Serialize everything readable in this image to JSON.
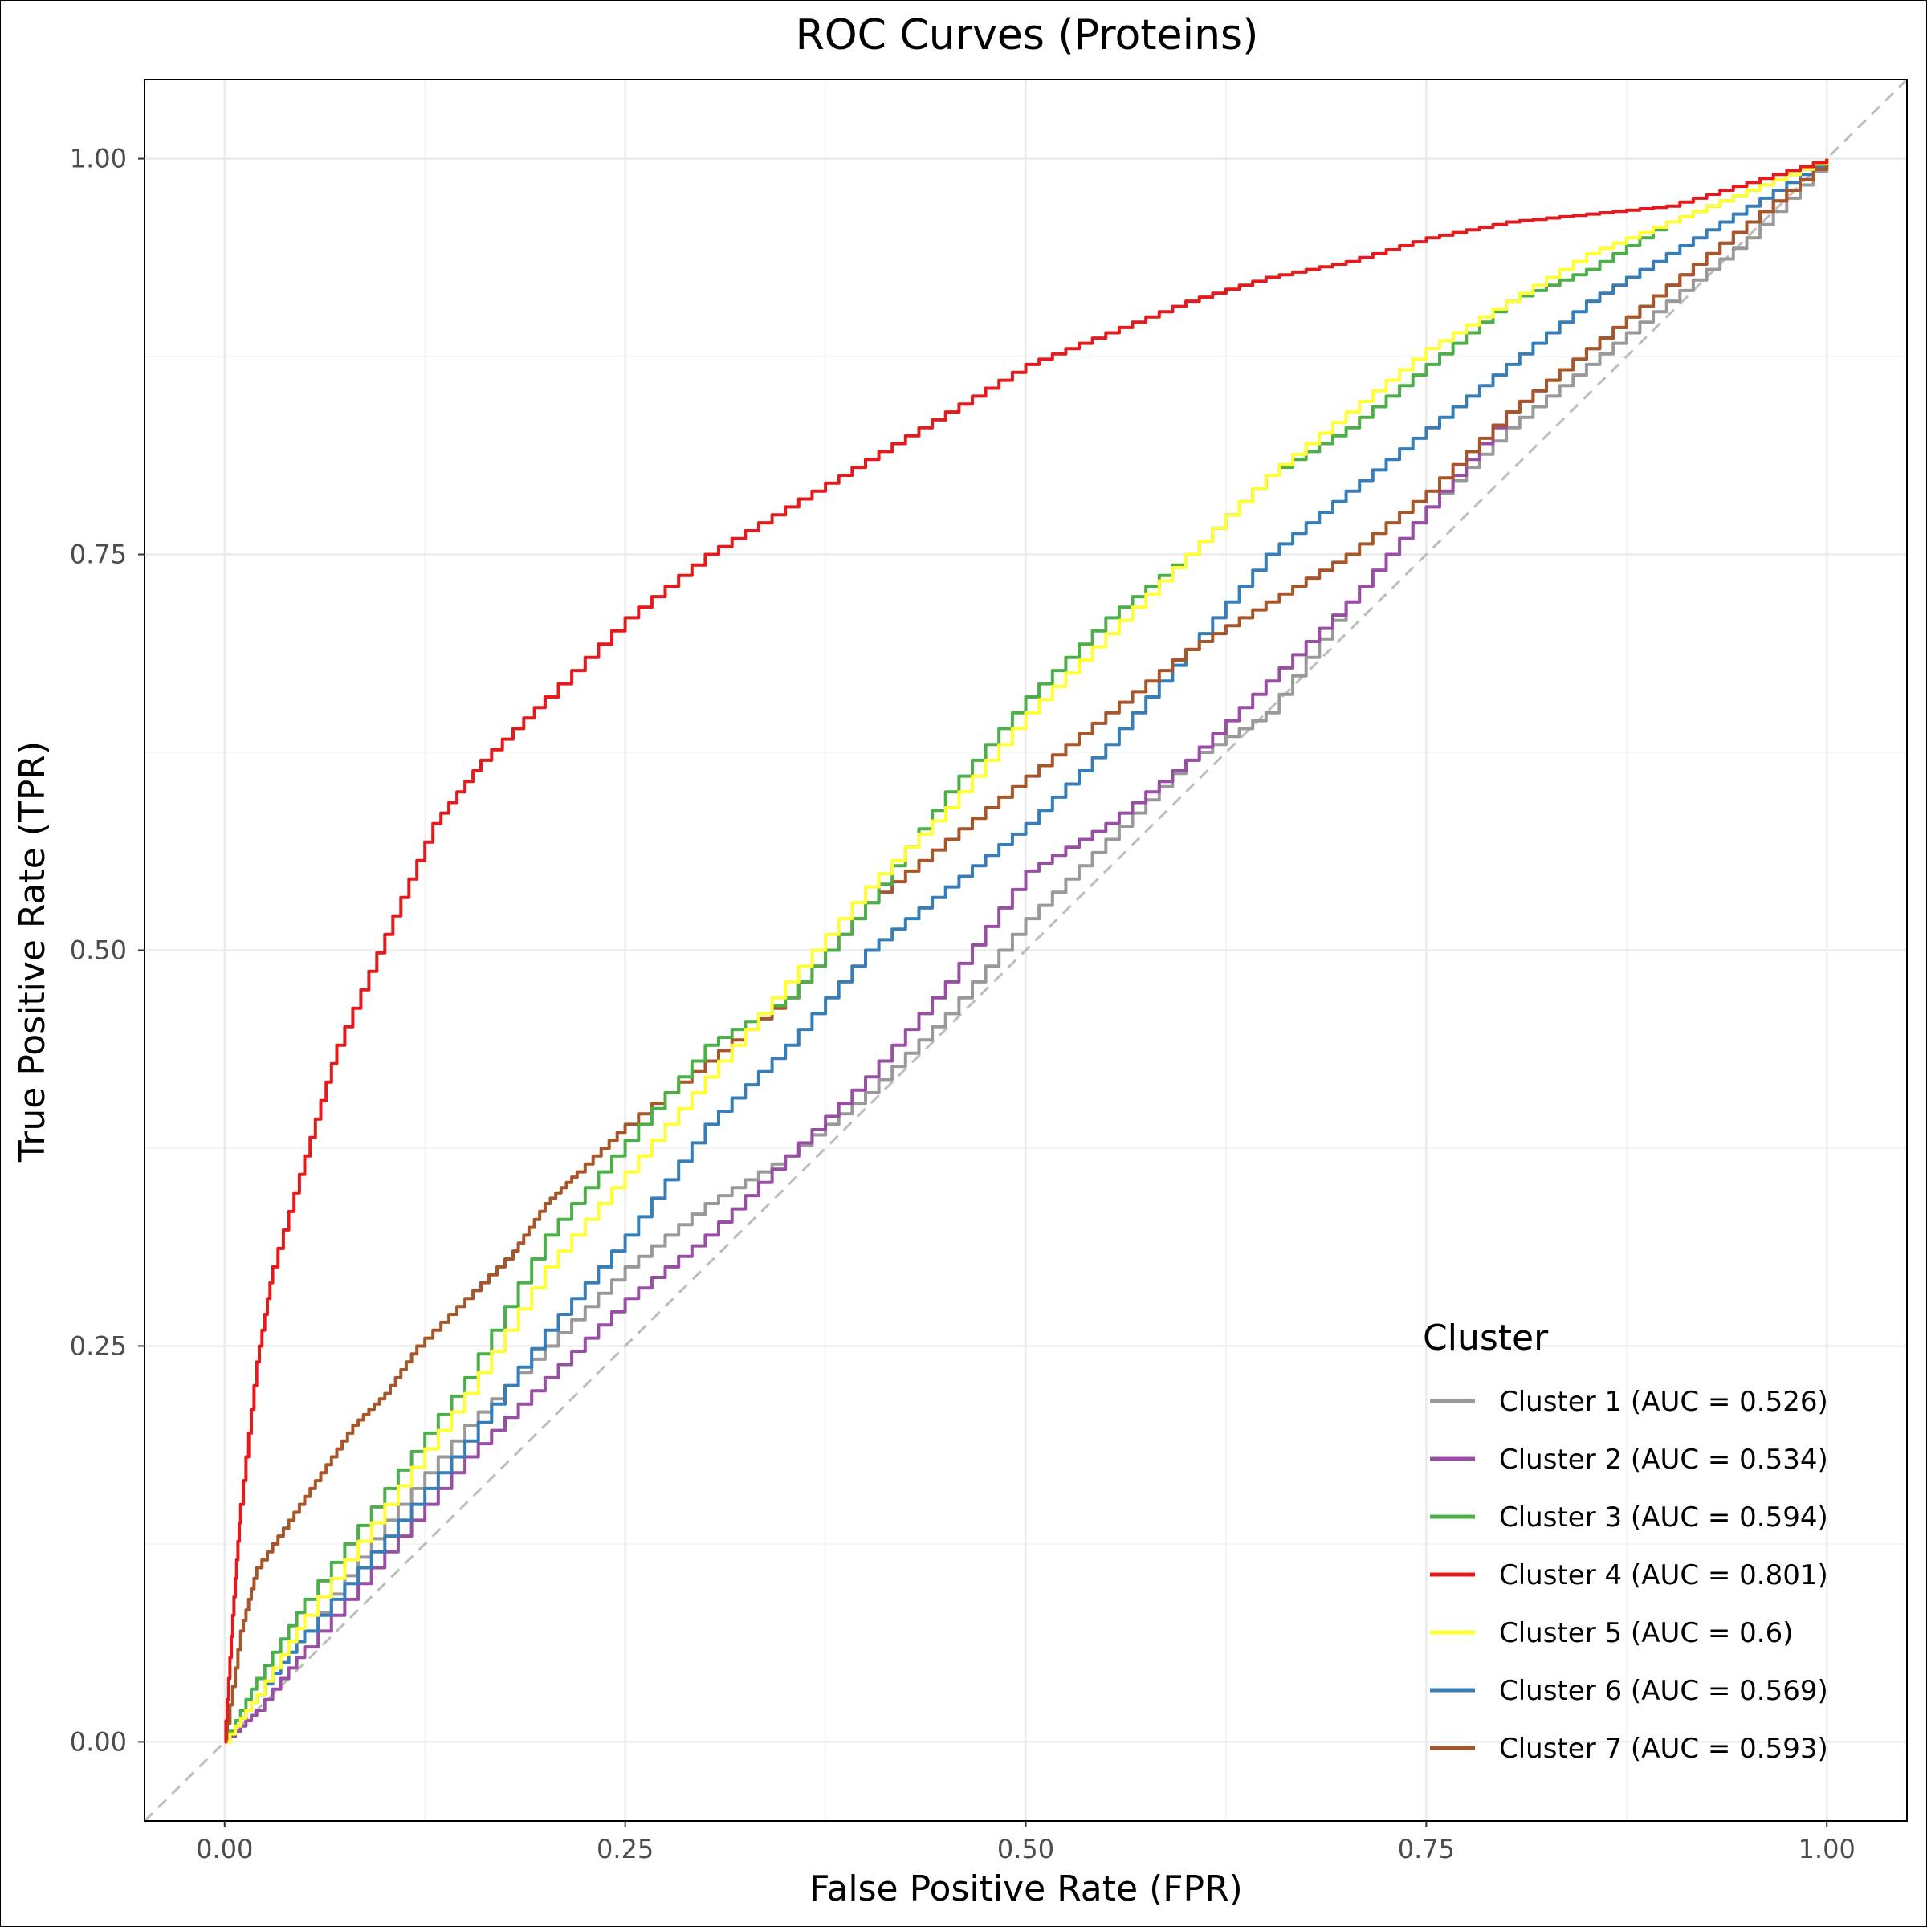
{
  "chart_data": {
    "type": "line",
    "title": "ROC Curves (Proteins)",
    "xlabel": "False Positive Rate (FPR)",
    "ylabel": "True Positive Rate (TPR)",
    "xlim": [
      -0.05,
      1.05
    ],
    "ylim": [
      -0.05,
      1.05
    ],
    "x_ticks": [
      0,
      0.25,
      0.5,
      0.75,
      1
    ],
    "y_ticks": [
      0,
      0.25,
      0.5,
      0.75,
      1
    ],
    "x_tick_labels": [
      "0.00",
      "0.25",
      "0.50",
      "0.75",
      "1.00"
    ],
    "y_tick_labels": [
      "0.00",
      "0.25",
      "0.50",
      "0.75",
      "1.00"
    ],
    "grid": true,
    "legend_title": "Cluster",
    "legend_position": "bottom-right",
    "reference_line": {
      "x": [
        -0.05,
        1.05
      ],
      "y": [
        -0.05,
        1.05
      ],
      "color": "#bdbdbd",
      "dashed": true
    },
    "series": [
      {
        "name": "Cluster 1 (AUC = 0.526)",
        "color": "#999999",
        "x": [
          0,
          0.02,
          0.05,
          0.1,
          0.15,
          0.2,
          0.25,
          0.3,
          0.35,
          0.4,
          0.45,
          0.5,
          0.55,
          0.6,
          0.65,
          0.7,
          0.75,
          0.8,
          0.85,
          0.9,
          0.95,
          1
        ],
        "y": [
          0,
          0.03,
          0.07,
          0.14,
          0.2,
          0.25,
          0.3,
          0.34,
          0.37,
          0.41,
          0.46,
          0.52,
          0.57,
          0.62,
          0.65,
          0.72,
          0.78,
          0.83,
          0.87,
          0.91,
          0.95,
          1
        ]
      },
      {
        "name": "Cluster 2 (AUC = 0.534)",
        "color": "#984ea3",
        "x": [
          0,
          0.02,
          0.05,
          0.1,
          0.15,
          0.2,
          0.25,
          0.3,
          0.35,
          0.4,
          0.45,
          0.5,
          0.55,
          0.6,
          0.65,
          0.7,
          0.75,
          0.8,
          0.85,
          0.9,
          0.95,
          1
        ],
        "y": [
          0,
          0.02,
          0.06,
          0.12,
          0.18,
          0.23,
          0.28,
          0.32,
          0.37,
          0.42,
          0.48,
          0.55,
          0.58,
          0.62,
          0.67,
          0.72,
          0.78,
          0.84,
          0.88,
          0.92,
          0.96,
          1
        ]
      },
      {
        "name": "Cluster 3 (AUC = 0.594)",
        "color": "#4daf4a",
        "x": [
          0,
          0.02,
          0.05,
          0.1,
          0.15,
          0.2,
          0.25,
          0.3,
          0.35,
          0.4,
          0.45,
          0.5,
          0.55,
          0.6,
          0.65,
          0.7,
          0.75,
          0.8,
          0.85,
          0.9,
          0.95,
          1
        ],
        "y": [
          0,
          0.04,
          0.09,
          0.16,
          0.23,
          0.32,
          0.38,
          0.44,
          0.47,
          0.53,
          0.6,
          0.66,
          0.71,
          0.75,
          0.8,
          0.83,
          0.87,
          0.91,
          0.93,
          0.96,
          0.98,
          1
        ]
      },
      {
        "name": "Cluster 4 (AUC = 0.801)",
        "color": "#e41a1c",
        "x": [
          0,
          0.005,
          0.01,
          0.02,
          0.03,
          0.05,
          0.07,
          0.1,
          0.13,
          0.16,
          0.2,
          0.25,
          0.3,
          0.35,
          0.4,
          0.45,
          0.5,
          0.55,
          0.6,
          0.65,
          0.7,
          0.75,
          0.8,
          0.85,
          0.9,
          0.95,
          1
        ],
        "y": [
          0,
          0.08,
          0.15,
          0.24,
          0.3,
          0.37,
          0.44,
          0.51,
          0.58,
          0.62,
          0.66,
          0.71,
          0.75,
          0.78,
          0.81,
          0.84,
          0.87,
          0.89,
          0.91,
          0.925,
          0.935,
          0.95,
          0.96,
          0.965,
          0.97,
          0.985,
          1
        ]
      },
      {
        "name": "Cluster 5 (AUC = 0.6)",
        "color": "#ffff33",
        "x": [
          0,
          0.02,
          0.05,
          0.1,
          0.15,
          0.2,
          0.25,
          0.3,
          0.35,
          0.4,
          0.45,
          0.5,
          0.55,
          0.6,
          0.65,
          0.7,
          0.75,
          0.8,
          0.85,
          0.9,
          0.95,
          1
        ],
        "y": [
          0,
          0.03,
          0.08,
          0.15,
          0.22,
          0.3,
          0.36,
          0.42,
          0.48,
          0.54,
          0.59,
          0.65,
          0.7,
          0.75,
          0.8,
          0.84,
          0.88,
          0.91,
          0.94,
          0.96,
          0.98,
          1
        ]
      },
      {
        "name": "Cluster 6 (AUC = 0.569)",
        "color": "#377eb8",
        "x": [
          0,
          0.02,
          0.05,
          0.1,
          0.15,
          0.2,
          0.25,
          0.3,
          0.35,
          0.4,
          0.45,
          0.5,
          0.55,
          0.6,
          0.65,
          0.7,
          0.75,
          0.8,
          0.85,
          0.9,
          0.95,
          1
        ],
        "y": [
          0,
          0.03,
          0.07,
          0.13,
          0.19,
          0.26,
          0.32,
          0.39,
          0.44,
          0.5,
          0.54,
          0.58,
          0.63,
          0.69,
          0.75,
          0.79,
          0.83,
          0.87,
          0.91,
          0.94,
          0.97,
          1
        ]
      },
      {
        "name": "Cluster 7 (AUC = 0.593)",
        "color": "#a65628",
        "x": [
          0,
          0.01,
          0.02,
          0.04,
          0.06,
          0.08,
          0.1,
          0.12,
          0.15,
          0.18,
          0.2,
          0.22,
          0.25,
          0.3,
          0.35,
          0.4,
          0.45,
          0.5,
          0.55,
          0.6,
          0.65,
          0.7,
          0.75,
          0.8,
          0.85,
          0.9,
          0.95,
          1
        ],
        "y": [
          0,
          0.07,
          0.11,
          0.14,
          0.17,
          0.2,
          0.22,
          0.25,
          0.28,
          0.31,
          0.34,
          0.36,
          0.39,
          0.43,
          0.47,
          0.53,
          0.57,
          0.61,
          0.65,
          0.69,
          0.72,
          0.75,
          0.79,
          0.84,
          0.88,
          0.92,
          0.96,
          1
        ]
      }
    ]
  }
}
